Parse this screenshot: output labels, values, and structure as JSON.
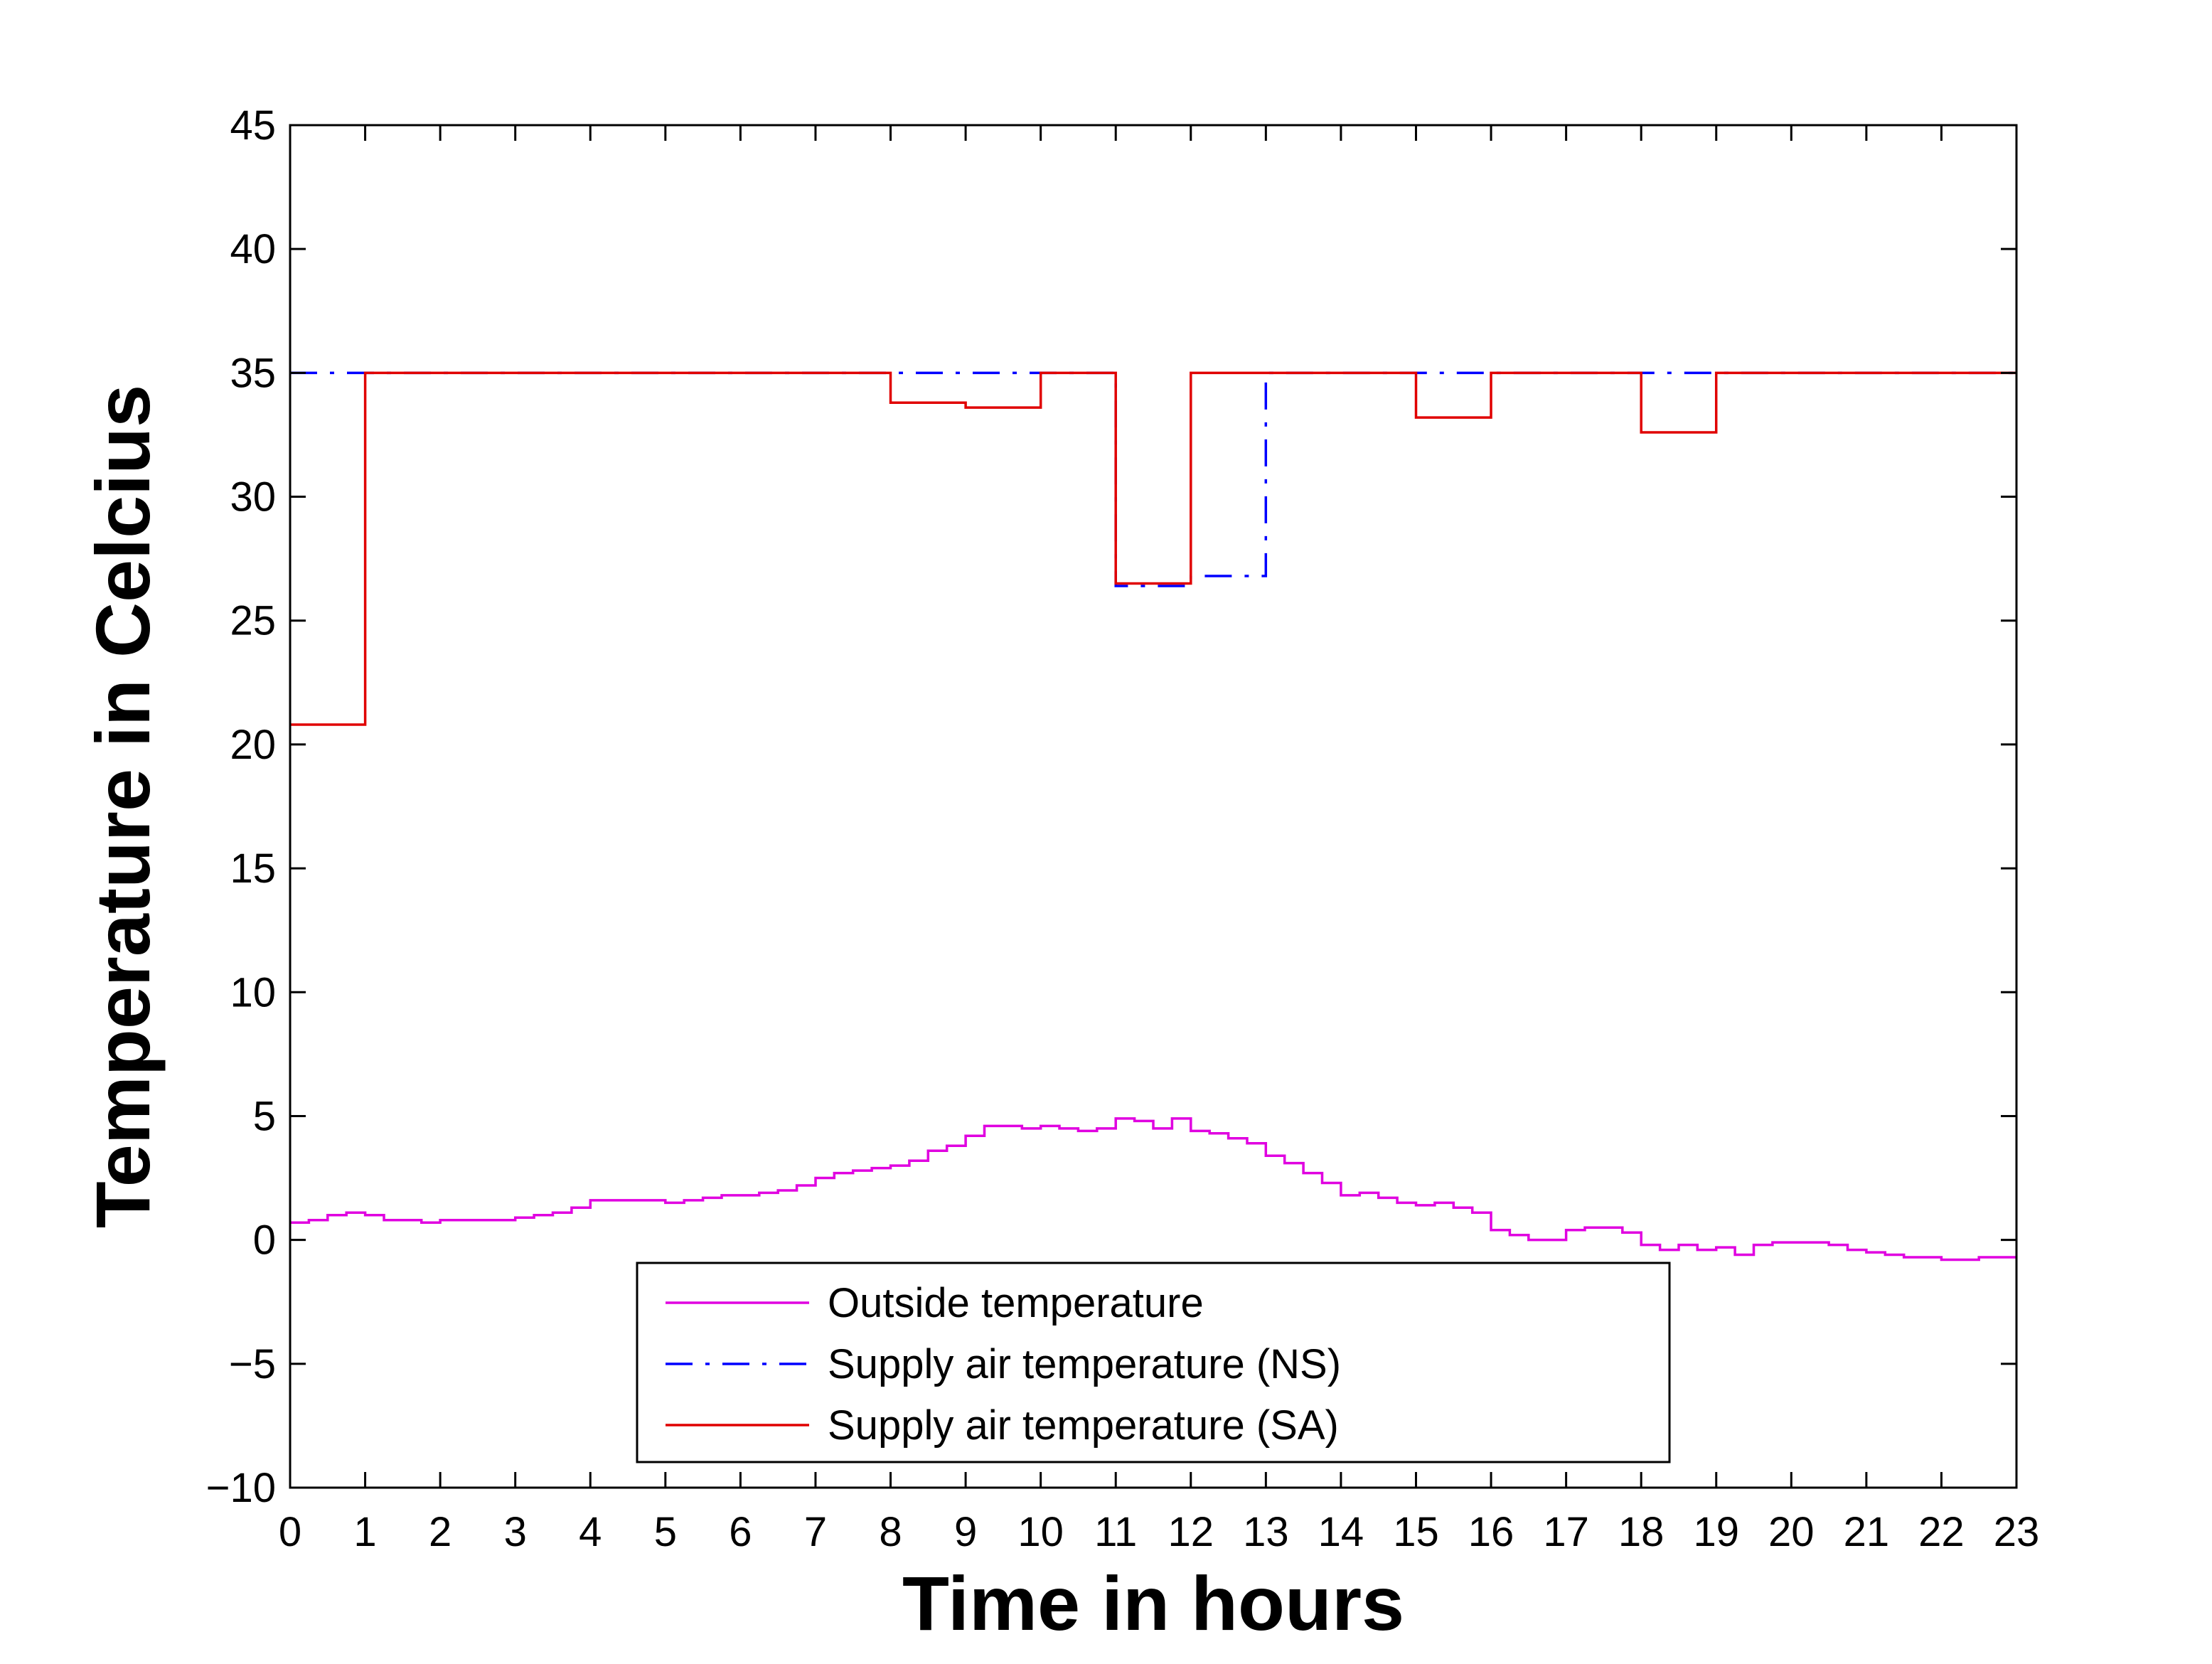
{
  "chart_data": {
    "type": "line",
    "title": "",
    "xlabel": "Time in hours",
    "ylabel": "Temperature in Celcius",
    "xlim": [
      0,
      23
    ],
    "ylim": [
      -10,
      45
    ],
    "xticks": [
      "0",
      "1",
      "2",
      "3",
      "4",
      "5",
      "6",
      "7",
      "8",
      "9",
      "10",
      "11",
      "12",
      "13",
      "14",
      "15",
      "16",
      "17",
      "18",
      "19",
      "20",
      "21",
      "22",
      "23"
    ],
    "yticks": [
      "−10",
      "−5",
      "0",
      "5",
      "10",
      "15",
      "20",
      "25",
      "30",
      "35",
      "40",
      "45"
    ],
    "grid": false,
    "legend_position": "bottom-center",
    "series": [
      {
        "name": "Outside temperature",
        "color": "#e000e0",
        "style": "solid",
        "step": true,
        "x": [
          0,
          0.25,
          0.5,
          0.75,
          1,
          1.25,
          1.5,
          1.75,
          2,
          2.25,
          2.5,
          2.75,
          3,
          3.25,
          3.5,
          3.75,
          4,
          4.25,
          4.5,
          4.75,
          5,
          5.25,
          5.5,
          5.75,
          6,
          6.25,
          6.5,
          6.75,
          7,
          7.25,
          7.5,
          7.75,
          8,
          8.25,
          8.5,
          8.75,
          9,
          9.25,
          9.5,
          9.75,
          10,
          10.25,
          10.5,
          10.75,
          11,
          11.25,
          11.5,
          11.75,
          12,
          12.25,
          12.5,
          12.75,
          13,
          13.25,
          13.5,
          13.75,
          14,
          14.25,
          14.5,
          14.75,
          15,
          15.25,
          15.5,
          15.75,
          16,
          16.25,
          16.5,
          16.75,
          17,
          17.25,
          17.5,
          17.75,
          18,
          18.25,
          18.5,
          18.75,
          19,
          19.25,
          19.5,
          19.75,
          20,
          20.25,
          20.5,
          20.75,
          21,
          21.25,
          21.5,
          21.75,
          22,
          22.25,
          22.5,
          22.75
        ],
        "y": [
          0.7,
          0.8,
          1.0,
          1.1,
          1.0,
          0.8,
          0.8,
          0.7,
          0.8,
          0.8,
          0.8,
          0.8,
          0.9,
          1.0,
          1.1,
          1.3,
          1.6,
          1.6,
          1.6,
          1.6,
          1.5,
          1.6,
          1.7,
          1.8,
          1.8,
          1.9,
          2.0,
          2.2,
          2.5,
          2.7,
          2.8,
          2.9,
          3.0,
          3.2,
          3.6,
          3.8,
          4.2,
          4.6,
          4.6,
          4.5,
          4.6,
          4.5,
          4.4,
          4.5,
          4.9,
          4.8,
          4.5,
          4.9,
          4.4,
          4.3,
          4.1,
          3.9,
          3.4,
          3.1,
          2.7,
          2.3,
          1.8,
          1.9,
          1.7,
          1.5,
          1.4,
          1.5,
          1.3,
          1.1,
          0.4,
          0.2,
          0.0,
          0.0,
          0.4,
          0.5,
          0.5,
          0.3,
          -0.2,
          -0.4,
          -0.2,
          -0.4,
          -0.3,
          -0.6,
          -0.2,
          -0.1,
          -0.1,
          -0.1,
          -0.2,
          -0.4,
          -0.5,
          -0.6,
          -0.7,
          -0.7,
          -0.8,
          -0.8,
          -0.7,
          -0.7
        ]
      },
      {
        "name": "Supply air temperature (NS)",
        "color": "#0000ff",
        "style": "dashdot",
        "step": true,
        "x": [
          0,
          1,
          2,
          3,
          4,
          5,
          6,
          7,
          8,
          9,
          10,
          11,
          12,
          13,
          14,
          15,
          16,
          17,
          18,
          19,
          20,
          21,
          22
        ],
        "y": [
          35,
          35,
          35,
          35,
          35,
          35,
          35,
          35,
          35,
          35,
          35,
          26.4,
          26.8,
          35,
          35,
          35,
          35,
          35,
          35,
          35,
          35,
          35,
          35
        ]
      },
      {
        "name": "Supply air temperature (SA)",
        "color": "#e00000",
        "style": "solid",
        "step": true,
        "x": [
          0,
          1,
          2,
          3,
          4,
          5,
          6,
          7,
          8,
          9,
          10,
          11,
          12,
          13,
          14,
          15,
          16,
          17,
          18,
          19,
          20,
          21,
          22
        ],
        "y": [
          20.8,
          35,
          35,
          35,
          35,
          35,
          35,
          35,
          33.8,
          33.6,
          35,
          26.5,
          35,
          35,
          35,
          33.2,
          35,
          35,
          32.6,
          35,
          35,
          35,
          35
        ]
      }
    ]
  }
}
